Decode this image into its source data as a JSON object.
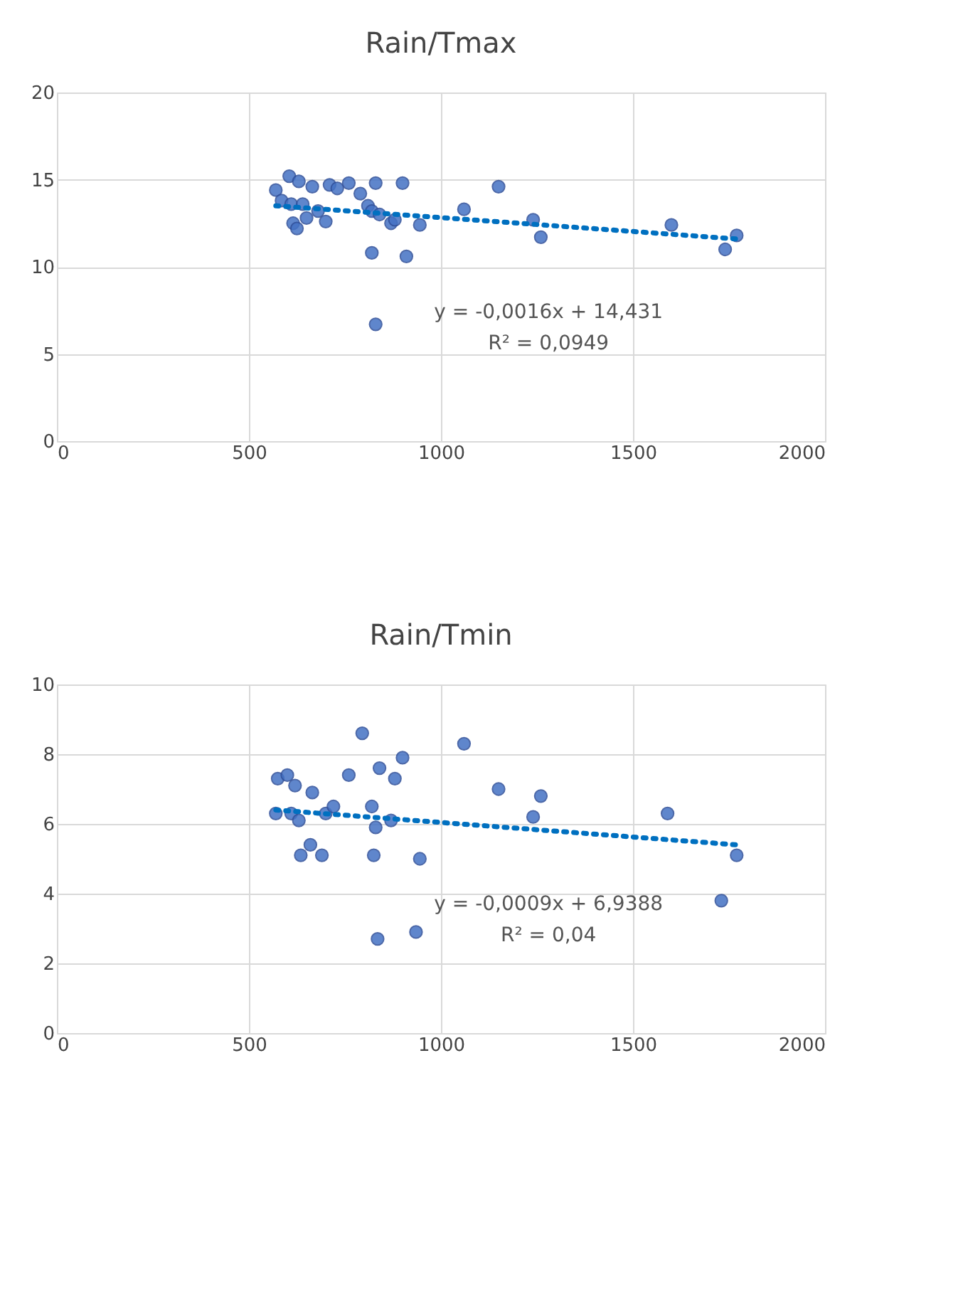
{
  "chart_data": [
    {
      "type": "scatter",
      "title": "Rain/Tmax",
      "xlim": [
        0,
        2000
      ],
      "xticks": [
        0,
        500,
        1000,
        1500,
        2000
      ],
      "ylim": [
        0,
        20
      ],
      "yticks": [
        0,
        5,
        10,
        15,
        20
      ],
      "grid": true,
      "marker": "circle",
      "annotations": [
        "y = -0,0016x + 14,431",
        "R² = 0,0949"
      ],
      "series": [
        {
          "color": "#4472c4",
          "x": [
            570,
            585,
            605,
            610,
            615,
            625,
            630,
            640,
            650,
            665,
            680,
            700,
            710,
            730,
            760,
            790,
            810,
            820,
            830,
            840,
            870,
            880,
            900,
            910,
            820,
            830,
            945,
            1060,
            1150,
            1240,
            1260,
            1600,
            1740,
            1770
          ],
          "values": [
            14.4,
            13.8,
            15.2,
            13.6,
            12.5,
            12.2,
            14.9,
            13.6,
            12.8,
            14.6,
            13.2,
            12.6,
            14.7,
            14.5,
            14.8,
            14.2,
            13.5,
            13.2,
            14.8,
            13.0,
            12.5,
            12.7,
            14.8,
            10.6,
            10.8,
            6.7,
            12.4,
            13.3,
            14.6,
            12.7,
            11.7,
            12.4,
            11.0,
            11.8
          ]
        },
        {
          "type": "line",
          "color": "#0070c0",
          "line_style": "dotted",
          "marker": "none",
          "x": [
            570,
            1770
          ],
          "values": [
            13.5,
            11.6
          ]
        }
      ]
    },
    {
      "type": "scatter",
      "title": "Rain/Tmin",
      "xlim": [
        0,
        2000
      ],
      "xticks": [
        0,
        500,
        1000,
        1500,
        2000
      ],
      "ylim": [
        0,
        10
      ],
      "yticks": [
        0,
        2,
        4,
        6,
        8,
        10
      ],
      "grid": true,
      "marker": "circle",
      "annotations": [
        "y = -0,0009x + 6,9388",
        "R² = 0,04"
      ],
      "series": [
        {
          "color": "#4472c4",
          "x": [
            570,
            575,
            600,
            610,
            620,
            630,
            635,
            660,
            665,
            690,
            700,
            720,
            760,
            795,
            820,
            825,
            830,
            835,
            840,
            870,
            880,
            900,
            935,
            945,
            1060,
            1150,
            1240,
            1260,
            1590,
            1730,
            1770
          ],
          "values": [
            6.3,
            7.3,
            7.4,
            6.3,
            7.1,
            6.1,
            5.1,
            5.4,
            6.9,
            5.1,
            6.3,
            6.5,
            7.4,
            8.6,
            6.5,
            5.1,
            5.9,
            2.7,
            7.6,
            6.1,
            7.3,
            7.9,
            2.9,
            5.0,
            8.3,
            7.0,
            6.2,
            6.8,
            6.3,
            3.8,
            5.1
          ]
        },
        {
          "type": "line",
          "color": "#0070c0",
          "line_style": "dotted",
          "marker": "none",
          "x": [
            570,
            1770
          ],
          "values": [
            6.4,
            5.4
          ]
        }
      ]
    }
  ]
}
